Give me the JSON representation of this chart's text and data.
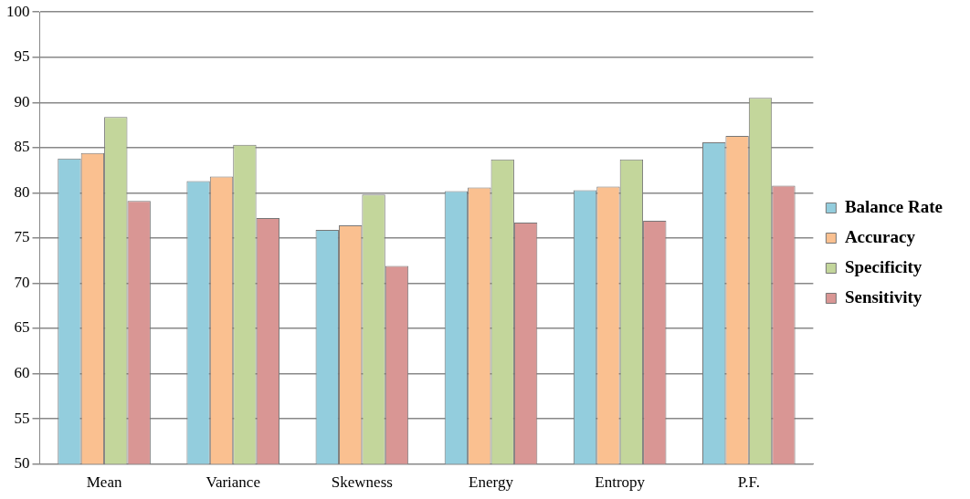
{
  "chart_data": {
    "type": "bar",
    "categories": [
      "Mean",
      "Variance",
      "Skewness",
      "Energy",
      "Entropy",
      "P.F."
    ],
    "series": [
      {
        "name": "Balance Rate",
        "color": "#93cddd",
        "values": [
          83.8,
          81.3,
          75.9,
          80.2,
          80.3,
          85.6
        ]
      },
      {
        "name": "Accuracy",
        "color": "#fac090",
        "values": [
          84.4,
          81.8,
          76.4,
          80.6,
          80.7,
          86.3
        ]
      },
      {
        "name": "Specificity",
        "color": "#c3d69b",
        "values": [
          88.4,
          85.3,
          79.8,
          83.7,
          83.7,
          90.5
        ]
      },
      {
        "name": "Sensitivity",
        "color": "#d99694",
        "values": [
          79.1,
          77.2,
          71.9,
          76.7,
          76.9,
          80.8
        ]
      }
    ],
    "ylim": [
      50,
      100
    ],
    "yticks": [
      50,
      55,
      60,
      65,
      70,
      75,
      80,
      85,
      90,
      95,
      100
    ],
    "grid": "y",
    "legend": "right"
  }
}
